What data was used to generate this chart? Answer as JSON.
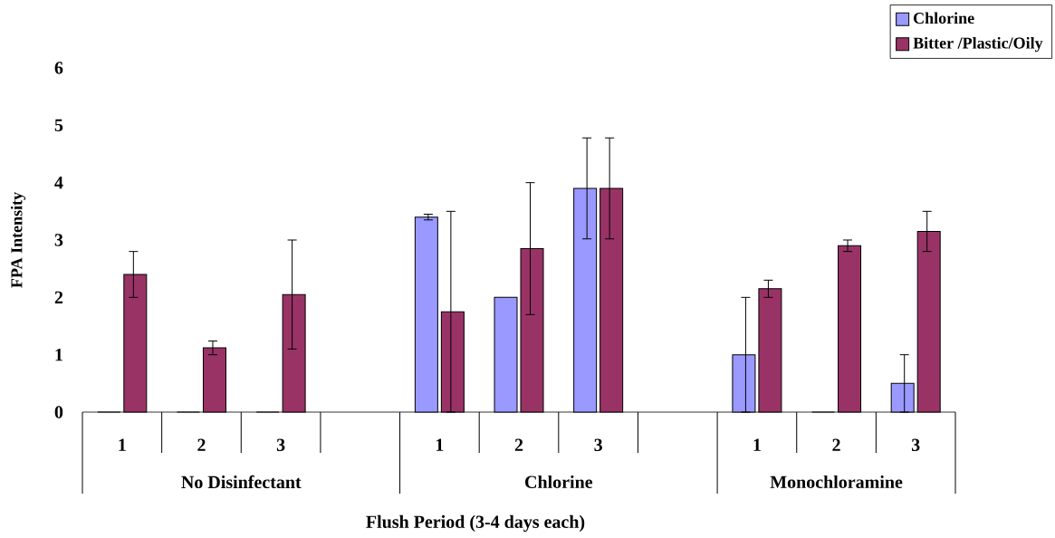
{
  "chart_data": {
    "type": "bar",
    "xlabel": "Flush Period (3-4 days each)",
    "ylabel": "FPA Intensity",
    "categories": [
      "1",
      "2",
      "3",
      null,
      "1",
      "2",
      "3",
      null,
      "1",
      "2",
      "3"
    ],
    "series": [
      {
        "name": "Chlorine",
        "color": "#9999ff",
        "values": [
          0,
          0,
          0,
          null,
          3.4,
          2.0,
          3.9,
          null,
          1.0,
          0,
          0.5
        ],
        "errors": [
          null,
          null,
          null,
          null,
          0.05,
          null,
          0.88,
          null,
          1.0,
          null,
          0.5
        ]
      },
      {
        "name": "Bitter /Plastic/Oily",
        "color": "#993366",
        "values": [
          2.4,
          1.12,
          2.05,
          null,
          1.75,
          2.85,
          3.9,
          null,
          2.15,
          2.9,
          3.15
        ],
        "errors": [
          0.4,
          0.12,
          0.95,
          null,
          1.75,
          1.15,
          0.88,
          null,
          0.15,
          0.1,
          0.35
        ]
      }
    ],
    "ylim": [
      0,
      6
    ],
    "yticks": [
      0,
      1,
      2,
      3,
      4,
      5,
      6
    ],
    "legend": "top right",
    "annotations": [
      "No Disinfectant",
      "Chlorine",
      "Monochloramine"
    ]
  }
}
